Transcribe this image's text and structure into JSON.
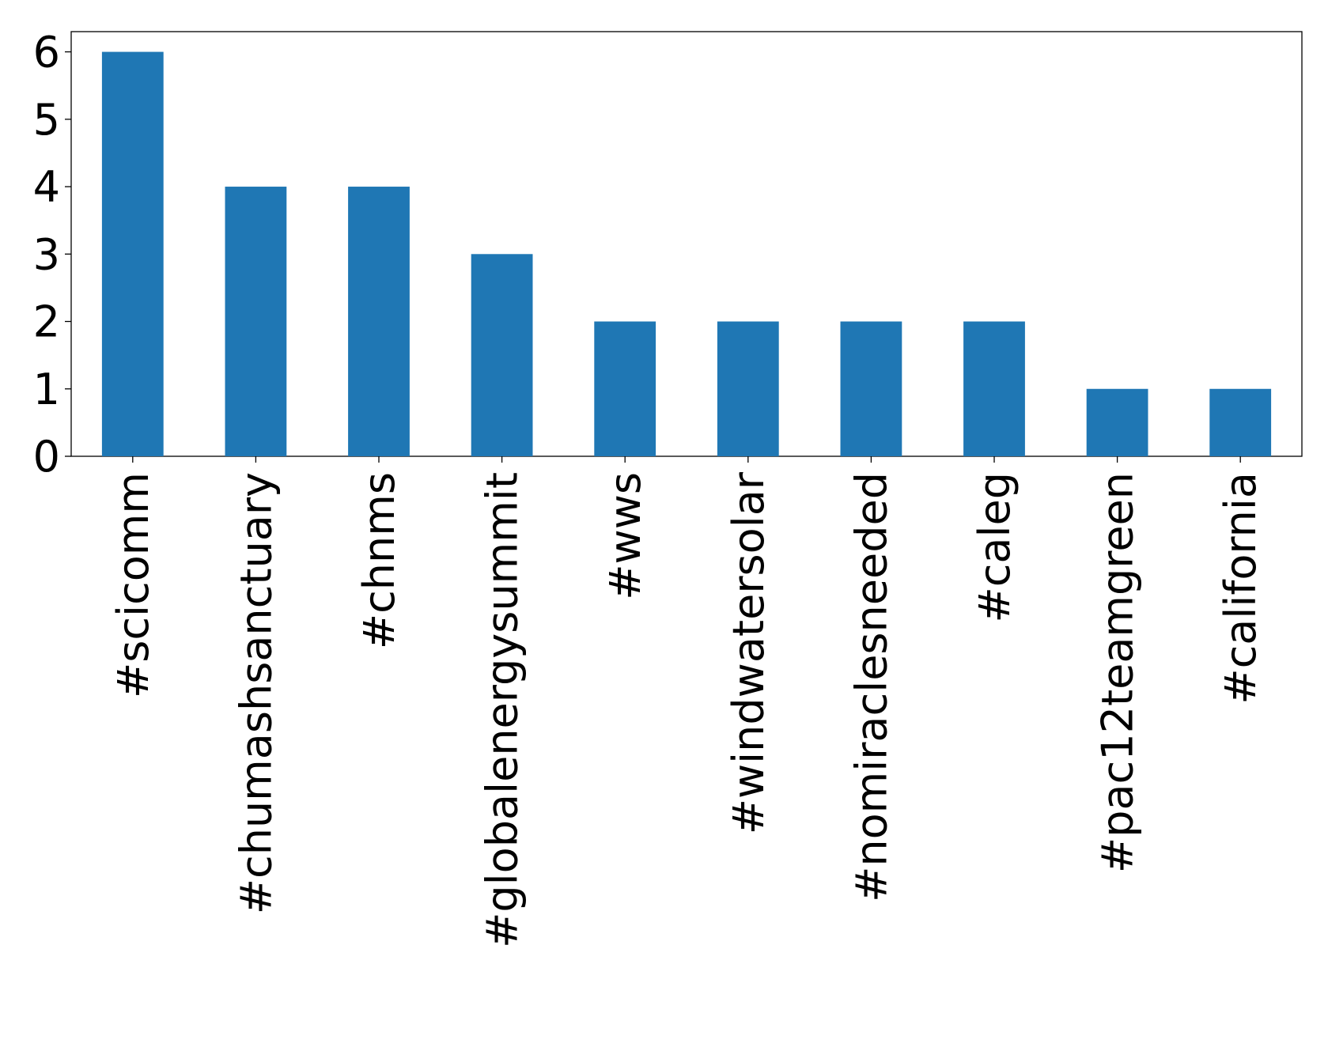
{
  "chart_data": {
    "type": "bar",
    "categories": [
      "#scicomm",
      "#chumashsanctuary",
      "#chnms",
      "#globalenergysummit",
      "#wws",
      "#windwatersolar",
      "#nomiraclesneeded",
      "#caleg",
      "#pac12teamgreen",
      "#california"
    ],
    "values": [
      6,
      4,
      4,
      3,
      2,
      2,
      2,
      2,
      1,
      1
    ],
    "color": "#1f77b4",
    "ylim": [
      0,
      6.3
    ],
    "yticks": [
      0,
      1,
      2,
      3,
      4,
      5,
      6
    ],
    "grid": false
  }
}
